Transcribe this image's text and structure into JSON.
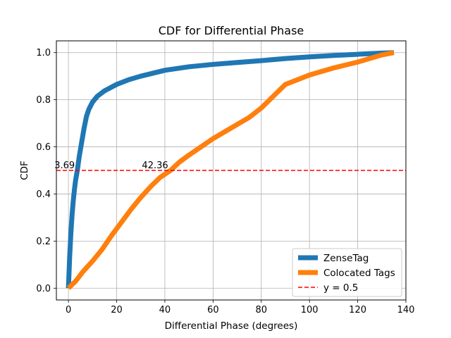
{
  "chart_data": {
    "type": "line",
    "title": "CDF for Differential Phase",
    "xlabel": "Differential Phase (degrees)",
    "ylabel": "CDF",
    "xlim": [
      -5,
      140
    ],
    "ylim": [
      -0.05,
      1.05
    ],
    "xticks": [
      0,
      20,
      40,
      60,
      80,
      100,
      120,
      140
    ],
    "yticks": [
      0.0,
      0.2,
      0.4,
      0.6,
      0.8,
      1.0
    ],
    "xtick_labels": [
      "0",
      "20",
      "40",
      "60",
      "80",
      "100",
      "120",
      "140"
    ],
    "ytick_labels": [
      "0.0",
      "0.2",
      "0.4",
      "0.6",
      "0.8",
      "1.0"
    ],
    "grid": true,
    "legend_position": "lower-right",
    "series": [
      {
        "name": "ZenseTag",
        "color": "#1f77b4",
        "x": [
          0,
          0.5,
          1,
          1.5,
          2,
          2.5,
          3,
          3.69,
          4.5,
          5.5,
          6.5,
          7.5,
          8.5,
          10,
          12,
          15,
          20,
          25,
          30,
          40,
          50,
          60,
          70,
          80,
          90,
          100,
          110,
          120,
          130,
          135
        ],
        "y": [
          0.0,
          0.13,
          0.23,
          0.31,
          0.37,
          0.42,
          0.46,
          0.5,
          0.56,
          0.62,
          0.68,
          0.73,
          0.76,
          0.79,
          0.815,
          0.838,
          0.865,
          0.885,
          0.9,
          0.925,
          0.94,
          0.95,
          0.958,
          0.966,
          0.975,
          0.982,
          0.988,
          0.993,
          0.998,
          1.0
        ]
      },
      {
        "name": "Colocated Tags",
        "color": "#ff7f0e",
        "x": [
          0,
          3,
          6,
          10,
          14,
          18,
          22,
          26,
          30,
          34,
          38,
          42.36,
          46,
          50,
          55,
          60,
          65,
          70,
          75,
          80,
          85,
          90,
          95,
          100,
          110,
          120,
          130,
          135
        ],
        "y": [
          0.0,
          0.03,
          0.07,
          0.115,
          0.165,
          0.225,
          0.28,
          0.335,
          0.385,
          0.43,
          0.47,
          0.5,
          0.535,
          0.565,
          0.6,
          0.635,
          0.665,
          0.695,
          0.725,
          0.765,
          0.815,
          0.865,
          0.885,
          0.905,
          0.935,
          0.96,
          0.99,
          1.0
        ]
      }
    ],
    "reference_line": {
      "name": "y = 0.5",
      "y": 0.5,
      "color": "#ff0000",
      "style": "dashed"
    },
    "annotations": [
      {
        "text": "3.69",
        "x": -5.8,
        "y": 0.5
      },
      {
        "text": "42.36",
        "x": 30.5,
        "y": 0.5
      }
    ]
  }
}
